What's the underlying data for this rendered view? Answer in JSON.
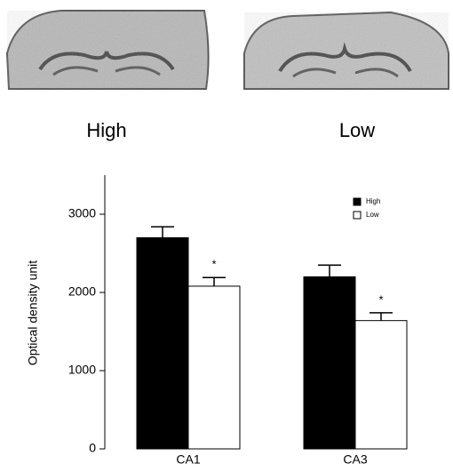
{
  "panel_labels": [
    "High",
    "Low"
  ],
  "chart_data": {
    "type": "bar",
    "y_label": "Optical density unit",
    "categories": [
      "CA1",
      "CA3"
    ],
    "series": [
      {
        "name": "High",
        "color": "#000000",
        "values": [
          2700,
          2200
        ],
        "errors": [
          140,
          150
        ]
      },
      {
        "name": "Low",
        "color": "#ffffff",
        "values": [
          2080,
          1640
        ],
        "errors": [
          110,
          100
        ],
        "significance": [
          "*",
          "*"
        ]
      }
    ],
    "ylim": [
      0,
      3500
    ],
    "yticks": [
      0,
      1000,
      2000,
      3000
    ],
    "grid": false,
    "legend": "upper right"
  }
}
